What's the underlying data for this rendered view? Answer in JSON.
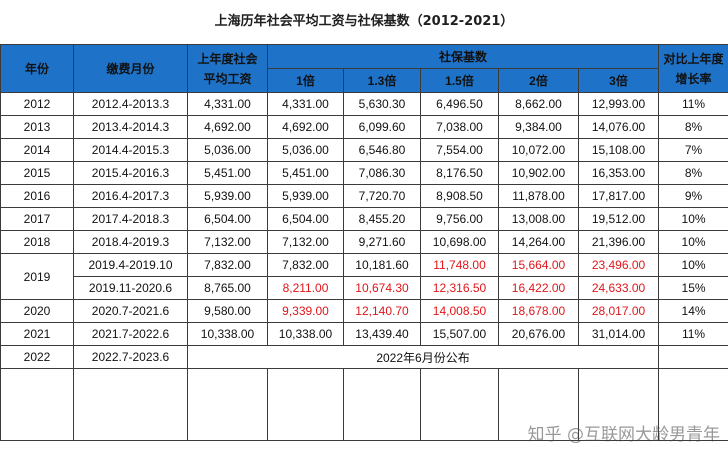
{
  "title": "上海历年社会平均工资与社保基数（2012-2021）",
  "headers": {
    "year": "年份",
    "period": "缴费月份",
    "avg_wage_l1": "上年度社会",
    "avg_wage_l2": "平均工资",
    "base_group": "社保基数",
    "m1": "1倍",
    "m13": "1.3倍",
    "m15": "1.5倍",
    "m2": "2倍",
    "m3": "3倍",
    "growth_l1": "对比上年度",
    "growth_l2": "增长率"
  },
  "rows": [
    {
      "year": "2012",
      "period": "2012.4-2013.3",
      "avg": "4,331.00",
      "b1": "4,331.00",
      "b13": "5,630.30",
      "b15": "6,496.50",
      "b2": "8,662.00",
      "b3": "12,993.00",
      "growth": "11%"
    },
    {
      "year": "2013",
      "period": "2013.4-2014.3",
      "avg": "4,692.00",
      "b1": "4,692.00",
      "b13": "6,099.60",
      "b15": "7,038.00",
      "b2": "9,384.00",
      "b3": "14,076.00",
      "growth": "8%"
    },
    {
      "year": "2014",
      "period": "2014.4-2015.3",
      "avg": "5,036.00",
      "b1": "5,036.00",
      "b13": "6,546.80",
      "b15": "7,554.00",
      "b2": "10,072.00",
      "b3": "15,108.00",
      "growth": "7%"
    },
    {
      "year": "2015",
      "period": "2015.4-2016.3",
      "avg": "5,451.00",
      "b1": "5,451.00",
      "b13": "7,086.30",
      "b15": "8,176.50",
      "b2": "10,902.00",
      "b3": "16,353.00",
      "growth": "8%"
    },
    {
      "year": "2016",
      "period": "2016.4-2017.3",
      "avg": "5,939.00",
      "b1": "5,939.00",
      "b13": "7,720.70",
      "b15": "8,908.50",
      "b2": "11,878.00",
      "b3": "17,817.00",
      "growth": "9%"
    },
    {
      "year": "2017",
      "period": "2017.4-2018.3",
      "avg": "6,504.00",
      "b1": "6,504.00",
      "b13": "8,455.20",
      "b15": "9,756.00",
      "b2": "13,008.00",
      "b3": "19,512.00",
      "growth": "10%"
    },
    {
      "year": "2018",
      "period": "2018.4-2019.3",
      "avg": "7,132.00",
      "b1": "7,132.00",
      "b13": "9,271.60",
      "b15": "10,698.00",
      "b2": "14,264.00",
      "b3": "21,396.00",
      "growth": "10%"
    },
    {
      "year": "2019",
      "period": "2019.4-2019.10",
      "avg": "7,832.00",
      "b1": "7,832.00",
      "b13": "10,181.60",
      "b15": "11,748.00",
      "b2": "15,664.00",
      "b3": "23,496.00",
      "growth": "10%"
    },
    {
      "year": "",
      "period": "2019.11-2020.6",
      "avg": "8,765.00",
      "b1": "8,211.00",
      "b13": "10,674.30",
      "b15": "12,316.50",
      "b2": "16,422.00",
      "b3": "24,633.00",
      "growth": "15%"
    },
    {
      "year": "2020",
      "period": "2020.7-2021.6",
      "avg": "9,580.00",
      "b1": "9,339.00",
      "b13": "12,140.70",
      "b15": "14,008.50",
      "b2": "18,678.00",
      "b3": "28,017.00",
      "growth": "14%"
    },
    {
      "year": "2021",
      "period": "2021.7-2022.6",
      "avg": "10,338.00",
      "b1": "10,338.00",
      "b13": "13,439.40",
      "b15": "15,507.00",
      "b2": "20,676.00",
      "b3": "31,014.00",
      "growth": "11%"
    },
    {
      "year": "2022",
      "period": "2022.7-2023.6",
      "note": "2022年6月份公布"
    }
  ],
  "highlight_color": "#e0161b",
  "header_color": "#1e73c8",
  "watermark": "知乎 @互联网大龄男青年"
}
